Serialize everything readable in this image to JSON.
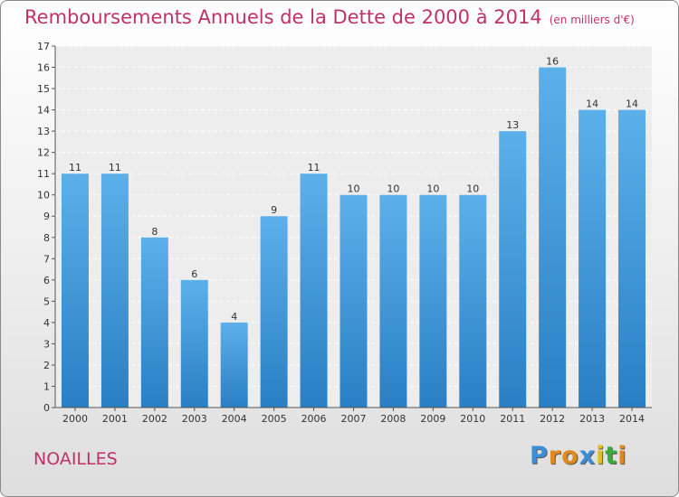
{
  "chart_data": {
    "type": "bar",
    "title": "Remboursements Annuels de la Dette de 2000 à 2014",
    "unit": "(en milliers d'€)",
    "categories": [
      "2000",
      "2001",
      "2002",
      "2003",
      "2004",
      "2005",
      "2006",
      "2007",
      "2008",
      "2009",
      "2010",
      "2011",
      "2012",
      "2013",
      "2014"
    ],
    "values": [
      11,
      11,
      8,
      6,
      4,
      9,
      11,
      10,
      10,
      10,
      10,
      13,
      16,
      14,
      14
    ],
    "yticks": [
      0,
      1,
      2,
      3,
      4,
      5,
      6,
      7,
      8,
      9,
      10,
      11,
      12,
      13,
      14,
      15,
      16,
      17
    ],
    "ylim": [
      0,
      17
    ],
    "xlabel": "",
    "ylabel": "",
    "grid": true,
    "bar_color": "#4a9fe0"
  },
  "footer": {
    "commune": "NOAILLES",
    "logo_letters": [
      "P",
      "r",
      "o",
      "x",
      "i",
      "t",
      "i"
    ],
    "logo_colors": [
      "#3b8fd9",
      "#e08a1e",
      "#e08a1e",
      "#3b8fd9",
      "#e0c01e",
      "#3baa3b",
      "#e08a1e"
    ]
  }
}
